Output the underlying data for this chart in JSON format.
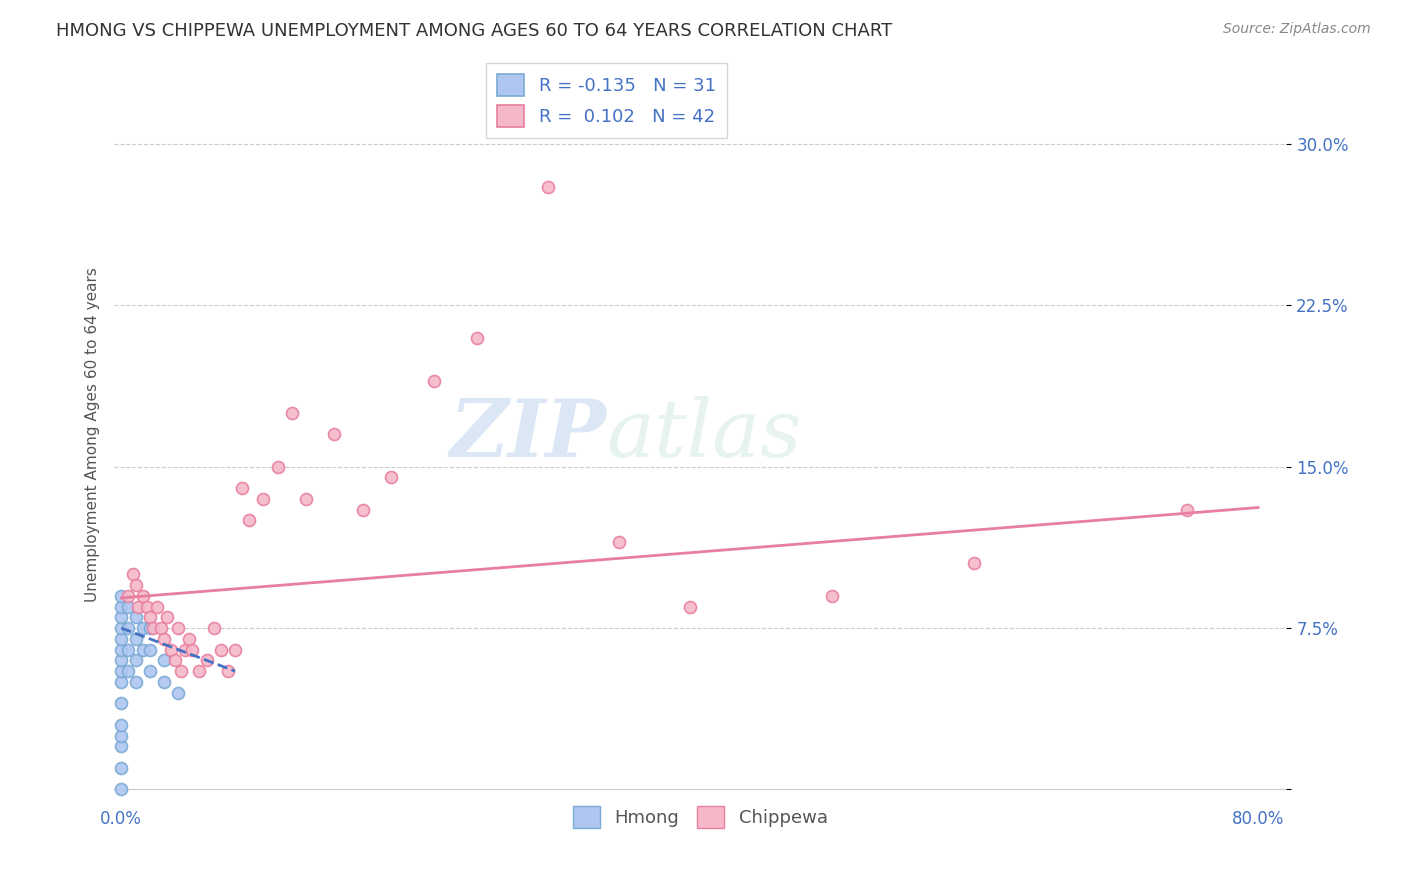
{
  "title": "HMONG VS CHIPPEWA UNEMPLOYMENT AMONG AGES 60 TO 64 YEARS CORRELATION CHART",
  "source": "Source: ZipAtlas.com",
  "ylabel": "Unemployment Among Ages 60 to 64 years",
  "xlabel": "",
  "xlim": [
    -0.005,
    0.82
  ],
  "ylim": [
    -0.005,
    0.335
  ],
  "xticks": [
    0.0,
    0.2,
    0.4,
    0.6,
    0.8
  ],
  "xticklabels": [
    "0.0%",
    "",
    "",
    "",
    "80.0%"
  ],
  "yticks": [
    0.0,
    0.075,
    0.15,
    0.225,
    0.3
  ],
  "yticklabels": [
    "",
    "7.5%",
    "15.0%",
    "22.5%",
    "30.0%"
  ],
  "hmong_color": "#aec6f0",
  "chippewa_color": "#f4b8c8",
  "hmong_edge_color": "#7baad4",
  "chippewa_edge_color": "#e87fa0",
  "hmong_trend_color": "#4472C4",
  "chippewa_trend_color": "#e87fa0",
  "hmong_R": -0.135,
  "hmong_N": 31,
  "chippewa_R": 0.102,
  "chippewa_N": 42,
  "watermark_zip": "ZIP",
  "watermark_atlas": "atlas",
  "background_color": "#ffffff",
  "grid_color": "#cccccc",
  "hmong_x": [
    0.0,
    0.0,
    0.0,
    0.0,
    0.0,
    0.0,
    0.0,
    0.0,
    0.0,
    0.0,
    0.0,
    0.0,
    0.0,
    0.0,
    0.0,
    0.005,
    0.005,
    0.005,
    0.005,
    0.01,
    0.01,
    0.01,
    0.01,
    0.015,
    0.015,
    0.02,
    0.02,
    0.02,
    0.03,
    0.03,
    0.04
  ],
  "hmong_y": [
    0.0,
    0.01,
    0.02,
    0.025,
    0.03,
    0.04,
    0.05,
    0.055,
    0.06,
    0.065,
    0.07,
    0.075,
    0.08,
    0.085,
    0.09,
    0.055,
    0.065,
    0.075,
    0.085,
    0.05,
    0.06,
    0.07,
    0.08,
    0.065,
    0.075,
    0.055,
    0.065,
    0.075,
    0.05,
    0.06,
    0.045
  ],
  "chippewa_x": [
    0.005,
    0.008,
    0.01,
    0.012,
    0.015,
    0.018,
    0.02,
    0.022,
    0.025,
    0.028,
    0.03,
    0.032,
    0.035,
    0.038,
    0.04,
    0.042,
    0.045,
    0.048,
    0.05,
    0.055,
    0.06,
    0.065,
    0.07,
    0.075,
    0.08,
    0.085,
    0.09,
    0.1,
    0.11,
    0.12,
    0.13,
    0.15,
    0.17,
    0.19,
    0.22,
    0.25,
    0.3,
    0.35,
    0.4,
    0.5,
    0.6,
    0.75
  ],
  "chippewa_y": [
    0.09,
    0.1,
    0.095,
    0.085,
    0.09,
    0.085,
    0.08,
    0.075,
    0.085,
    0.075,
    0.07,
    0.08,
    0.065,
    0.06,
    0.075,
    0.055,
    0.065,
    0.07,
    0.065,
    0.055,
    0.06,
    0.075,
    0.065,
    0.055,
    0.065,
    0.14,
    0.125,
    0.135,
    0.15,
    0.175,
    0.135,
    0.165,
    0.13,
    0.145,
    0.19,
    0.21,
    0.28,
    0.115,
    0.085,
    0.09,
    0.105,
    0.13
  ],
  "marker_size": 75,
  "title_fontsize": 13,
  "axis_label_fontsize": 11,
  "tick_fontsize": 12,
  "legend_fontsize": 13,
  "chippewa_trend_x0": 0.0,
  "chippewa_trend_y0": 0.089,
  "chippewa_trend_x1": 0.8,
  "chippewa_trend_y1": 0.131,
  "hmong_trend_x0": 0.0,
  "hmong_trend_y0": 0.075,
  "hmong_trend_x1": 0.08,
  "hmong_trend_y1": 0.055
}
